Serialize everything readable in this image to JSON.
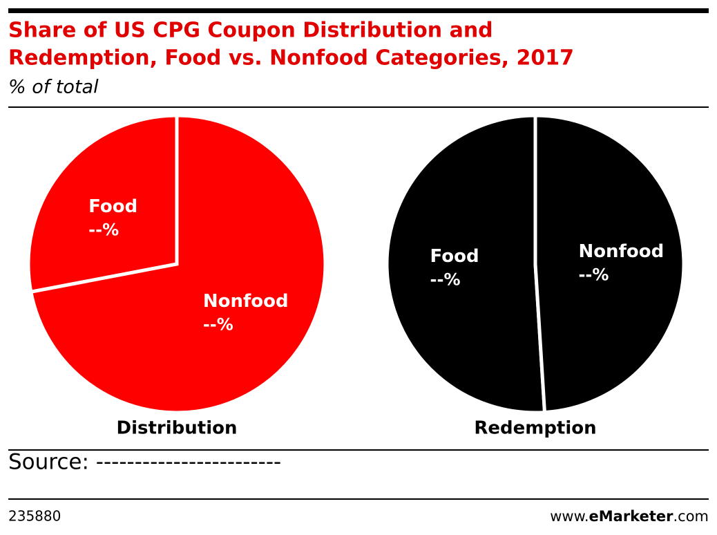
{
  "header": {
    "title": [
      "Share of US CPG Coupon Distribution and",
      "Redemption, Food vs. Nonfood Categories, 2017"
    ],
    "subtitle": "% of total"
  },
  "chart_data": [
    {
      "type": "pie",
      "title": "Distribution",
      "categories": [
        "Food",
        "Nonfood"
      ],
      "values": [
        28,
        72
      ],
      "value_labels": [
        "--%",
        "--%"
      ],
      "color": "#ff0000"
    },
    {
      "type": "pie",
      "title": "Redemption",
      "categories": [
        "Food",
        "Nonfood"
      ],
      "values": [
        51,
        49
      ],
      "value_labels": [
        "--%",
        "--%"
      ],
      "color": "#000000"
    }
  ],
  "footer": {
    "source": "Source: ------------------------",
    "id": "235880",
    "site": [
      "www.",
      "eMarketer",
      ".com"
    ]
  }
}
